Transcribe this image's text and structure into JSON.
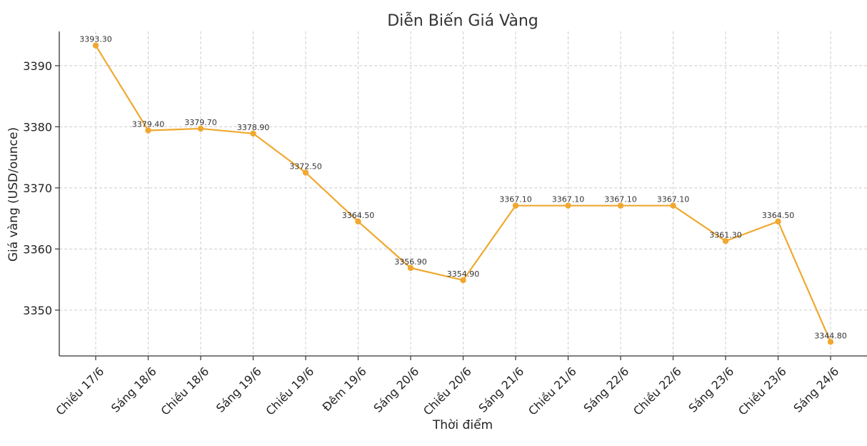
{
  "chart_data": {
    "type": "line",
    "title": "Diễn Biến Giá Vàng",
    "xlabel": "Thời điểm",
    "ylabel": "Giá vàng (USD/ounce)",
    "categories": [
      "Chiều 17/6",
      "Sáng 18/6",
      "Chiều 18/6",
      "Sáng 19/6",
      "Chiều 19/6",
      "Đêm 19/6",
      "Sáng 20/6",
      "Chiều 20/6",
      "Sáng 21/6",
      "Chiều 21/6",
      "Sáng 22/6",
      "Chiều 22/6",
      "Sáng 23/6",
      "Chiều 23/6",
      "Sáng 24/6"
    ],
    "series": [
      {
        "values": [
          3393.3,
          3379.4,
          3379.7,
          3378.9,
          3372.5,
          3364.5,
          3356.9,
          3354.9,
          3367.1,
          3367.1,
          3367.1,
          3367.1,
          3361.3,
          3364.5,
          3344.8
        ],
        "labels": [
          "3393.30",
          "3379.40",
          "3379.70",
          "3378.90",
          "3372.50",
          "3364.50",
          "3356.90",
          "3354.90",
          "3367.10",
          "3367.10",
          "3367.10",
          "3367.10",
          "3361.30",
          "3364.50",
          "3344.80"
        ],
        "color": "#F0A830"
      }
    ],
    "yticks": [
      3350,
      3360,
      3370,
      3380,
      3390
    ],
    "ylim": [
      3342.5,
      3395.6
    ],
    "grid": true
  }
}
